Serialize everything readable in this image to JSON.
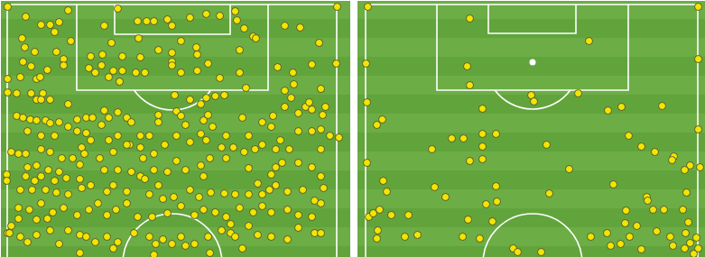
{
  "chart_data": [
    {
      "type": "scatter",
      "color": "#f2e600",
      "marker": "circle",
      "tick_labels": false,
      "xlim": [
        0,
        388
      ],
      "ylim": [
        0,
        285
      ],
      "x": [
        28,
        45,
        55,
        65,
        75,
        115,
        130,
        152,
        162,
        170,
        185,
        190,
        210,
        228,
        243,
        260,
        262,
        270,
        280,
        283,
        315,
        332,
        353,
        8,
        373,
        372,
        375,
        8,
        8,
        7,
        7,
        8,
        24,
        27,
        38,
        60,
        62,
        70,
        78,
        100,
        113,
        123,
        135,
        153,
        175,
        190,
        190,
        200,
        217,
        218,
        265,
        265,
        25,
        34,
        22,
        40,
        44,
        52,
        70,
        98,
        105,
        112,
        125,
        135,
        132,
        120,
        150,
        160,
        155,
        190,
        200,
        218,
        230,
        243,
        272,
        307,
        324,
        345,
        325,
        315,
        355,
        18,
        34,
        47,
        40,
        45,
        55,
        75,
        193,
        210,
        228,
        238,
        248,
        222,
        338,
        342,
        345,
        322,
        315,
        330,
        357,
        360,
        195,
        175,
        115,
        18,
        25,
        33,
        40,
        50,
        55,
        65,
        75,
        85,
        95,
        102,
        112,
        120,
        130,
        140,
        145,
        155,
        165,
        175,
        200,
        205,
        225,
        230,
        235,
        250,
        268,
        275,
        290,
        302,
        300,
        310,
        330,
        345,
        355,
        365,
        30,
        45,
        60,
        85,
        95,
        100,
        120,
        130,
        143,
        222,
        228,
        210,
        195,
        245,
        258,
        290,
        305,
        320,
        12,
        20,
        28,
        45,
        55,
        68,
        80,
        90,
        93,
        88,
        110,
        125,
        140,
        155,
        158,
        170,
        182,
        195,
        205,
        222,
        232,
        250,
        270,
        282,
        275,
        305,
        312,
        330,
        345,
        355,
        30,
        40,
        53,
        65,
        28,
        38,
        45,
        60,
        73,
        88,
        115,
        130,
        145,
        155,
        170,
        185,
        225,
        300,
        355,
        358,
        22,
        35,
        50,
        62,
        75,
        90,
        100,
        118,
        125,
        140,
        160,
        175,
        165,
        180,
        192,
        210,
        220,
        233,
        248,
        260,
        275,
        285,
        290,
        298,
        305,
        318,
        335,
        348,
        355,
        20,
        32,
        45,
        58,
        70,
        85,
        98,
        108,
        118,
        128,
        140,
        152,
        168,
        185,
        200,
        215,
        225,
        238,
        250,
        265,
        280,
        290,
        300,
        318,
        330,
        345,
        20,
        40,
        52,
        10,
        22,
        30,
        40,
        55,
        65,
        75,
        88,
        95,
        105,
        118,
        130,
        148,
        165,
        172,
        180,
        190,
        200,
        205,
        215,
        230,
        245,
        255,
        260,
        275,
        285,
        300,
        318,
        330,
        348,
        355,
        88,
        125,
        170,
        232,
        268,
        255,
        12
      ],
      "values": [
        18,
        27,
        27,
        24,
        11,
        28,
        9,
        23,
        23,
        23,
        21,
        28,
        19,
        15,
        17,
        12,
        22,
        31,
        40,
        42,
        28,
        30,
        47,
        7,
        7,
        70,
        152,
        87,
        102,
        193,
        200,
        258,
        42,
        52,
        57,
        35,
        57,
        65,
        45,
        62,
        60,
        47,
        62,
        42,
        55,
        58,
        68,
        45,
        52,
        60,
        55,
        80,
        68,
        73,
        85,
        87,
        85,
        77,
        72,
        75,
        80,
        72,
        78,
        78,
        90,
        85,
        80,
        80,
        63,
        72,
        80,
        78,
        70,
        86,
        97,
        74,
        80,
        71,
        93,
        100,
        98,
        103,
        103,
        103,
        110,
        110,
        110,
        115,
        105,
        110,
        108,
        106,
        105,
        115,
        118,
        113,
        121,
        108,
        118,
        125,
        127,
        118,
        123,
        127,
        122,
        128,
        130,
        132,
        133,
        133,
        136,
        135,
        140,
        132,
        130,
        130,
        138,
        130,
        124,
        130,
        135,
        150,
        150,
        135,
        128,
        138,
        133,
        127,
        140,
        150,
        130,
        150,
        135,
        128,
        140,
        155,
        145,
        145,
        143,
        150,
        145,
        150,
        150,
        145,
        147,
        155,
        155,
        150,
        160,
        148,
        155,
        157,
        150,
        163,
        163,
        160,
        165,
        165,
        168,
        170,
        170,
        165,
        168,
        175,
        175,
        163,
        170,
        182,
        175,
        168,
        160,
        163,
        175,
        170,
        160,
        178,
        188,
        183,
        175,
        175,
        168,
        165,
        186,
        185,
        180,
        180,
        185,
        165,
        185,
        183,
        188,
        190,
        195,
        200,
        195,
        200,
        197,
        198,
        188,
        188,
        190,
        195,
        188,
        190,
        195,
        193,
        195,
        208,
        210,
        210,
        210,
        213,
        215,
        208,
        205,
        212,
        205,
        212,
        198,
        205,
        215,
        220,
        218,
        210,
        218,
        213,
        214,
        215,
        215,
        203,
        215,
        210,
        205,
        212,
        210,
        222,
        225,
        230,
        232,
        225,
        235,
        230,
        238,
        232,
        225,
        238,
        232,
        225,
        240,
        240,
        236,
        228,
        238,
        232,
        235,
        240,
        230,
        235,
        228,
        235,
        232,
        238,
        240,
        242,
        243,
        242,
        258,
        262,
        268,
        260,
        255,
        270,
        255,
        260,
        262,
        268,
        262,
        268,
        258,
        262,
        270,
        265,
        270,
        262,
        272,
        270,
        262,
        255,
        258,
        262,
        250,
        260,
        262,
        265,
        252,
        258,
        258,
        280,
        275,
        282,
        280,
        275,
        248,
        250
      ]
    },
    {
      "type": "scatter",
      "color": "#f2e600",
      "marker": "circle",
      "tick_labels": false,
      "xlim": [
        0,
        386
      ],
      "ylim": [
        0,
        285
      ],
      "x": [
        12,
        378,
        125,
        257,
        10,
        378,
        122,
        125,
        193,
        196,
        245,
        139,
        278,
        293,
        338,
        28,
        22,
        11,
        378,
        105,
        118,
        139,
        154,
        139,
        83,
        210,
        301,
        315,
        330,
        351,
        349,
        125,
        139,
        11,
        235,
        369,
        363,
        380,
        29,
        33,
        86,
        154,
        213,
        284,
        321,
        322,
        98,
        143,
        155,
        340,
        361,
        367,
        13,
        18,
        25,
        38,
        57,
        123,
        150,
        298,
        297,
        310,
        23,
        22,
        53,
        67,
        117,
        136,
        173,
        178,
        204,
        259,
        277,
        281,
        292,
        315,
        332,
        347,
        364,
        369,
        376,
        378,
        363,
        373,
        350,
        328,
        365,
        302
      ],
      "values": [
        7,
        7,
        20,
        45,
        70,
        65,
        73,
        94,
        105,
        112,
        103,
        120,
        122,
        118,
        117,
        132,
        138,
        113,
        143,
        153,
        153,
        148,
        148,
        162,
        165,
        160,
        150,
        162,
        168,
        173,
        177,
        178,
        176,
        180,
        187,
        183,
        188,
        185,
        200,
        212,
        207,
        206,
        214,
        204,
        218,
        222,
        218,
        226,
        223,
        232,
        232,
        246,
        240,
        236,
        232,
        238,
        238,
        243,
        245,
        233,
        247,
        250,
        255,
        264,
        262,
        260,
        262,
        264,
        275,
        279,
        279,
        262,
        258,
        272,
        270,
        276,
        256,
        262,
        258,
        269,
        263,
        275,
        275,
        281,
        272,
        232,
        213,
        262
      ]
    }
  ]
}
